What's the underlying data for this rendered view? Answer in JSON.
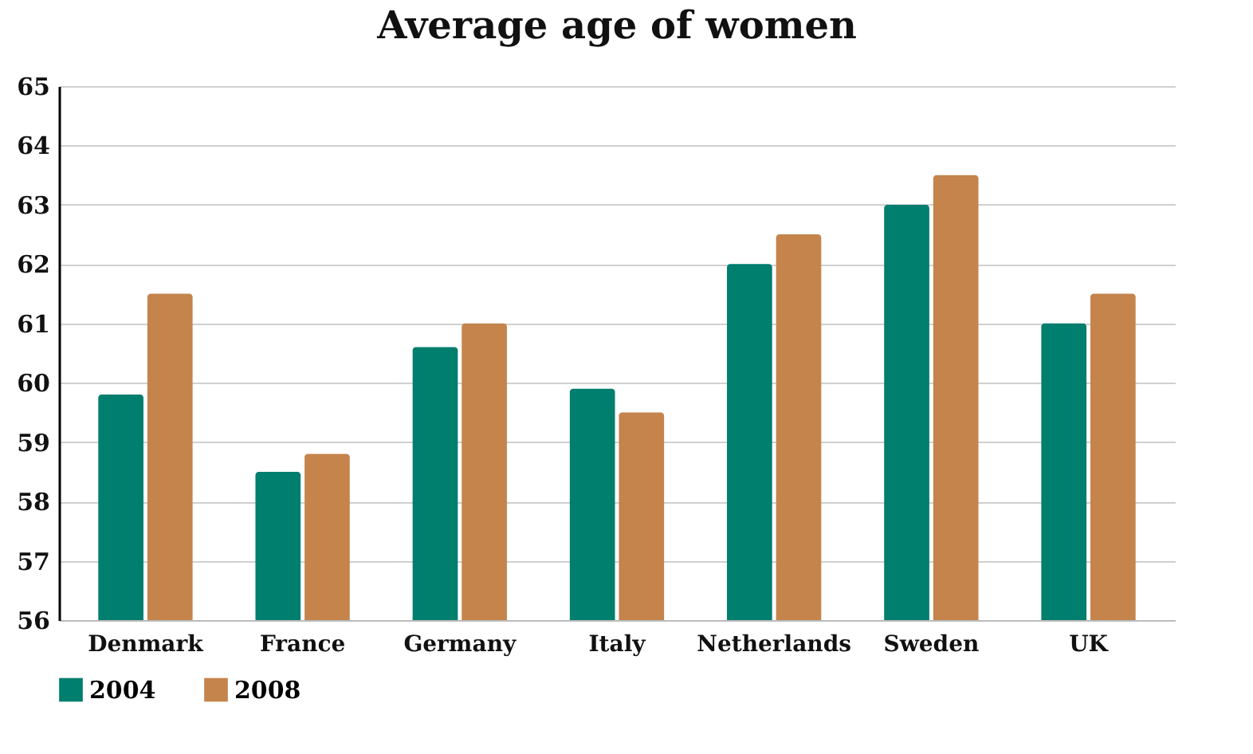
{
  "chart_data": {
    "type": "bar",
    "title": "Average age of women",
    "categories": [
      "Denmark",
      "France",
      "Germany",
      "Italy",
      "Netherlands",
      "Sweden",
      "UK"
    ],
    "series": [
      {
        "name": "2004",
        "color": "#007e6e",
        "values": [
          59.8,
          58.5,
          60.6,
          59.9,
          62.0,
          63.0,
          61.0
        ]
      },
      {
        "name": "2008",
        "color": "#c4844c",
        "values": [
          61.5,
          58.8,
          61.0,
          59.5,
          62.5,
          63.5,
          61.5
        ]
      }
    ],
    "ylim": [
      56,
      65
    ],
    "yticks": [
      56,
      57,
      58,
      59,
      60,
      61,
      62,
      63,
      64,
      65
    ],
    "grid": "y",
    "legend": "bottom"
  }
}
